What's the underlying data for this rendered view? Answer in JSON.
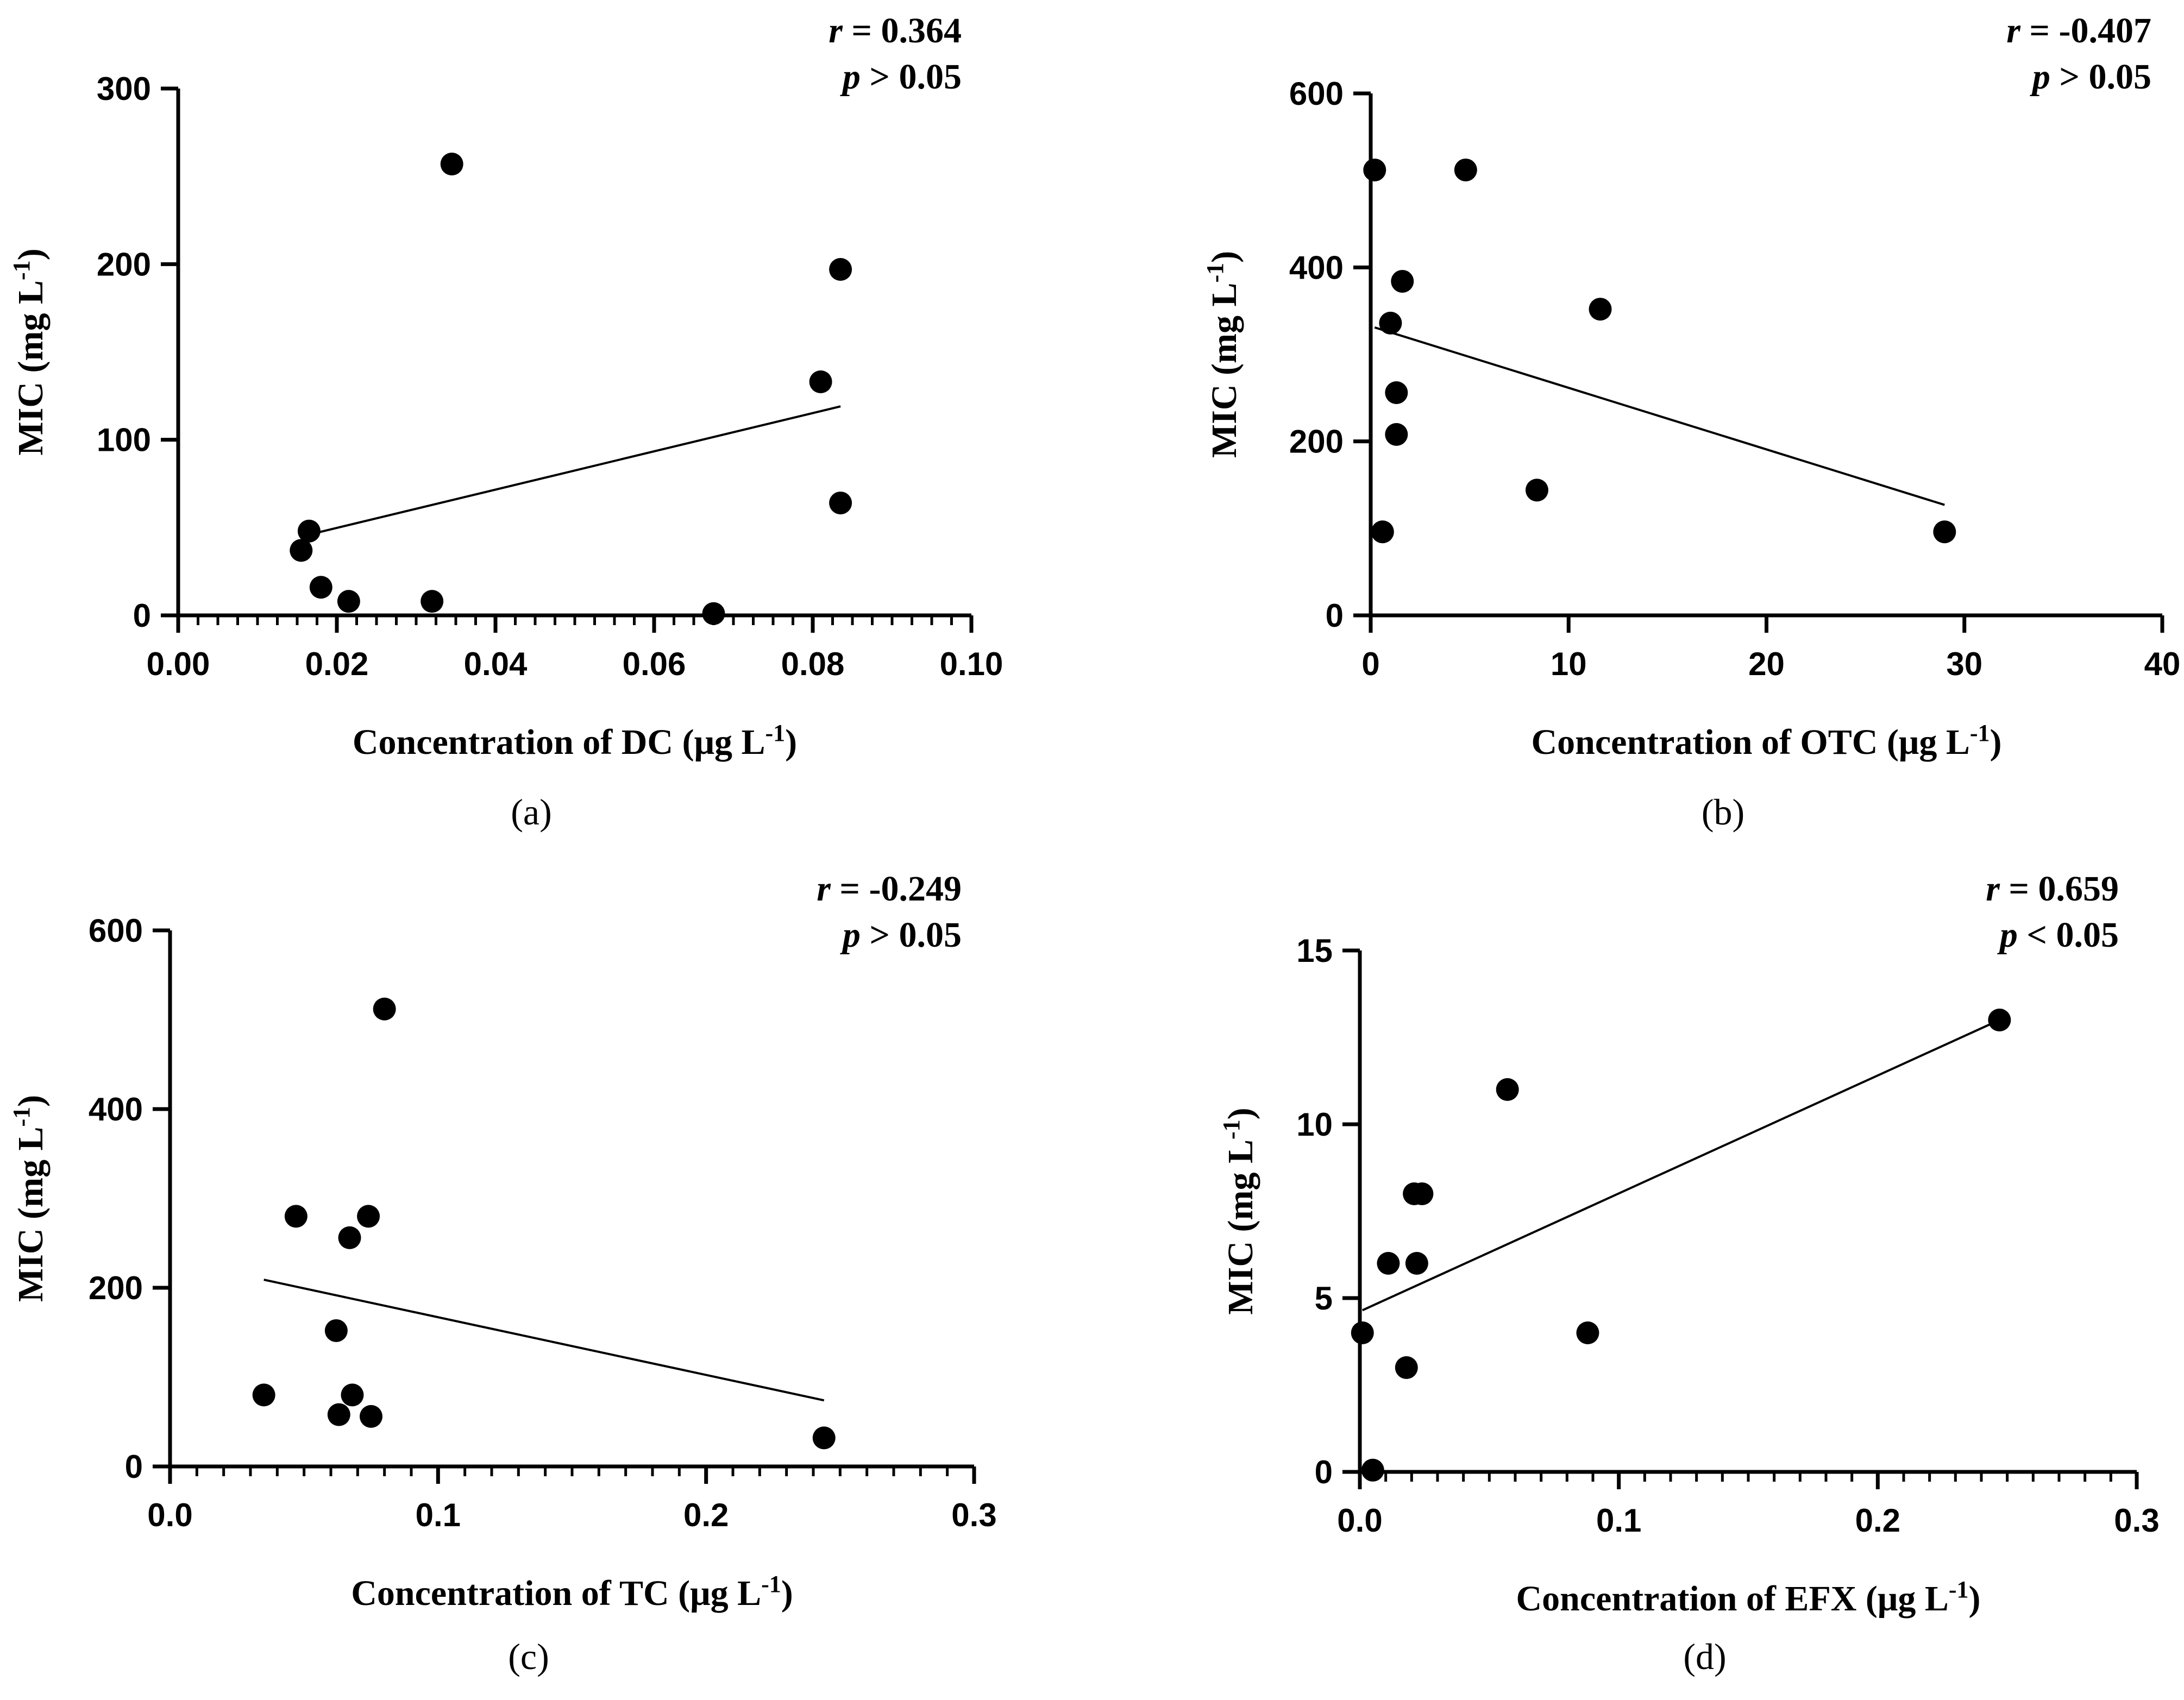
{
  "chart_data": [
    {
      "type": "scatter",
      "panel_label": "(a)",
      "xlabel": "Concentration of DC (μg L",
      "xlabel_sup": "-1",
      "xlabel_end": ")",
      "ylabel": "MIC (mg L",
      "ylabel_sup": "-1",
      "ylabel_end": ")",
      "r_label": "r",
      "r_text": " = 0.364",
      "p_label": "p",
      "p_text": " > 0.05",
      "xlim": [
        0,
        0.1
      ],
      "ylim": [
        0,
        300
      ],
      "xticks": [
        0,
        0.02,
        0.04,
        0.06,
        0.08,
        0.1
      ],
      "xtick_labels": [
        "0.00",
        "0.02",
        "0.04",
        "0.06",
        "0.08",
        "0.10"
      ],
      "x_minor_step": 0.0025,
      "yticks": [
        0,
        100,
        200,
        300
      ],
      "ytick_labels": [
        "0",
        "100",
        "200",
        "300"
      ],
      "points": [
        [
          0.0155,
          37
        ],
        [
          0.0165,
          48
        ],
        [
          0.018,
          16
        ],
        [
          0.0215,
          8
        ],
        [
          0.032,
          8
        ],
        [
          0.0345,
          257
        ],
        [
          0.0675,
          1
        ],
        [
          0.081,
          133
        ],
        [
          0.0835,
          64
        ],
        [
          0.0835,
          197
        ]
      ],
      "fit_line": [
        [
          0.0165,
          46
        ],
        [
          0.0835,
          119
        ]
      ]
    },
    {
      "type": "scatter",
      "panel_label": "(b)",
      "xlabel": "Concentration of OTC (μg L",
      "xlabel_sup": "-1",
      "xlabel_end": ")",
      "ylabel": "MIC (mg L",
      "ylabel_sup": "-1",
      "ylabel_end": ")",
      "r_label": "r",
      "r_text": " = -0.407",
      "p_label": "p",
      "p_text": " > 0.05",
      "xlim": [
        0,
        40
      ],
      "ylim": [
        0,
        600
      ],
      "xticks": [
        0,
        10,
        20,
        30,
        40
      ],
      "xtick_labels": [
        "0",
        "10",
        "20",
        "30",
        "40"
      ],
      "x_minor_step": 0,
      "yticks": [
        0,
        200,
        400,
        600
      ],
      "ytick_labels": [
        "0",
        "200",
        "400",
        "600"
      ],
      "points": [
        [
          0.2,
          512
        ],
        [
          0.6,
          96
        ],
        [
          1.0,
          336
        ],
        [
          1.3,
          208
        ],
        [
          1.3,
          256
        ],
        [
          1.6,
          384
        ],
        [
          4.8,
          512
        ],
        [
          8.4,
          144
        ],
        [
          11.6,
          352
        ],
        [
          29.0,
          96
        ]
      ],
      "fit_line": [
        [
          0.2,
          331
        ],
        [
          29.0,
          127
        ]
      ]
    },
    {
      "type": "scatter",
      "panel_label": "(c)",
      "xlabel": "Concentration of TC (μg L",
      "xlabel_sup": "-1",
      "xlabel_end": ")",
      "ylabel": "MIC (mg L",
      "ylabel_sup": "-1",
      "ylabel_end": ")",
      "r_label": "r",
      "r_text": " = -0.249",
      "p_label": "p",
      "p_text": " > 0.05",
      "xlim": [
        0,
        0.3
      ],
      "ylim": [
        0,
        600
      ],
      "xticks": [
        0,
        0.1,
        0.2,
        0.3
      ],
      "xtick_labels": [
        "0.0",
        "0.1",
        "0.2",
        "0.3"
      ],
      "x_minor_step": 0.01,
      "yticks": [
        0,
        200,
        400,
        600
      ],
      "ytick_labels": [
        "0",
        "200",
        "400",
        "600"
      ],
      "points": [
        [
          0.035,
          80
        ],
        [
          0.047,
          280
        ],
        [
          0.062,
          152
        ],
        [
          0.063,
          58
        ],
        [
          0.067,
          256
        ],
        [
          0.068,
          80
        ],
        [
          0.074,
          280
        ],
        [
          0.075,
          56
        ],
        [
          0.08,
          512
        ],
        [
          0.244,
          32
        ]
      ],
      "fit_line": [
        [
          0.035,
          209
        ],
        [
          0.244,
          74
        ]
      ]
    },
    {
      "type": "scatter",
      "panel_label": "(d)",
      "xlabel": "Concentration of EFX (μg L",
      "xlabel_sup": "-1",
      "xlabel_end": ")",
      "ylabel": "MIC (mg L",
      "ylabel_sup": "-1",
      "ylabel_end": ")",
      "r_label": "r",
      "r_text": " = 0.659",
      "p_label": "p",
      "p_text": " < 0.05",
      "xlim": [
        0,
        0.3
      ],
      "ylim": [
        0,
        15
      ],
      "xticks": [
        0,
        0.1,
        0.2,
        0.3
      ],
      "xtick_labels": [
        "0.0",
        "0.1",
        "0.2",
        "0.3"
      ],
      "x_minor_step": 0.01,
      "yticks": [
        0,
        5,
        10,
        15
      ],
      "ytick_labels": [
        "0",
        "5",
        "10",
        "15"
      ],
      "points": [
        [
          0.001,
          4
        ],
        [
          0.005,
          0.05
        ],
        [
          0.011,
          6
        ],
        [
          0.018,
          3
        ],
        [
          0.021,
          8
        ],
        [
          0.022,
          6
        ],
        [
          0.024,
          8
        ],
        [
          0.057,
          11
        ],
        [
          0.088,
          4
        ],
        [
          0.247,
          13
        ]
      ],
      "fit_line": [
        [
          0.001,
          4.65
        ],
        [
          0.247,
          13
        ]
      ]
    }
  ]
}
